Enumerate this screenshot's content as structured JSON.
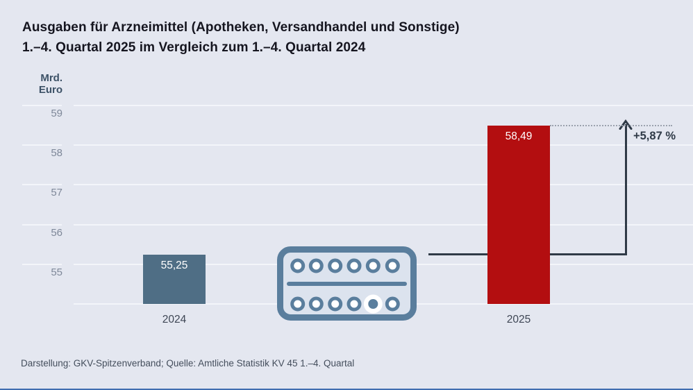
{
  "title": {
    "line1": "Ausgaben für Arzneimittel (Apotheken, Versandhandel und Sonstige)",
    "line2": "1.–4. Quartal 2025 im Vergleich zum 1.–4. Quartal 2024"
  },
  "axis": {
    "unit_line1": "Mrd.",
    "unit_line2": "Euro",
    "ticks": [
      59,
      58,
      57,
      56,
      55
    ],
    "ymin": 54,
    "baseline_gridline": true
  },
  "chart_data": {
    "type": "bar",
    "title": "Ausgaben für Arzneimittel (Apotheken, Versandhandel und Sonstige) 1.–4. Quartal 2025 im Vergleich zum 1.–4. Quartal 2024",
    "ylabel": "Mrd. Euro",
    "categories": [
      "2024",
      "2025"
    ],
    "values": [
      55.25,
      58.49
    ],
    "value_labels": [
      "55,25",
      "58,49"
    ],
    "bar_colors": [
      "#4f6e85",
      "#b30e10"
    ],
    "ylim": [
      54,
      59.6
    ],
    "yticks": [
      55,
      56,
      57,
      58,
      59
    ],
    "grid": true,
    "legend": "none",
    "annotation": {
      "percent_change_label": "+5,87 %",
      "percent_change_value": 5.87
    }
  },
  "icon": {
    "name": "pill-blister-pack",
    "color": "#5a7e9d"
  },
  "footer": {
    "text": "Darstellung: GKV-Spitzenverband; Quelle: Amtliche Statistik KV 45 1.–4. Quartal"
  },
  "colors": {
    "background": "#e4e7f0",
    "gridline": "#f3f5fa",
    "bar_2024": "#4f6e85",
    "bar_2025": "#b30e10",
    "arrow": "#2f3a47",
    "dotted_line": "#9aa1ad",
    "title_text": "#15151f",
    "tick_text": "#7e8899",
    "axis_unit_text": "#3c5166",
    "icon_interior": "#dce3ee",
    "footer_text": "#444e5c",
    "bottom_border": "#3f6db0"
  }
}
